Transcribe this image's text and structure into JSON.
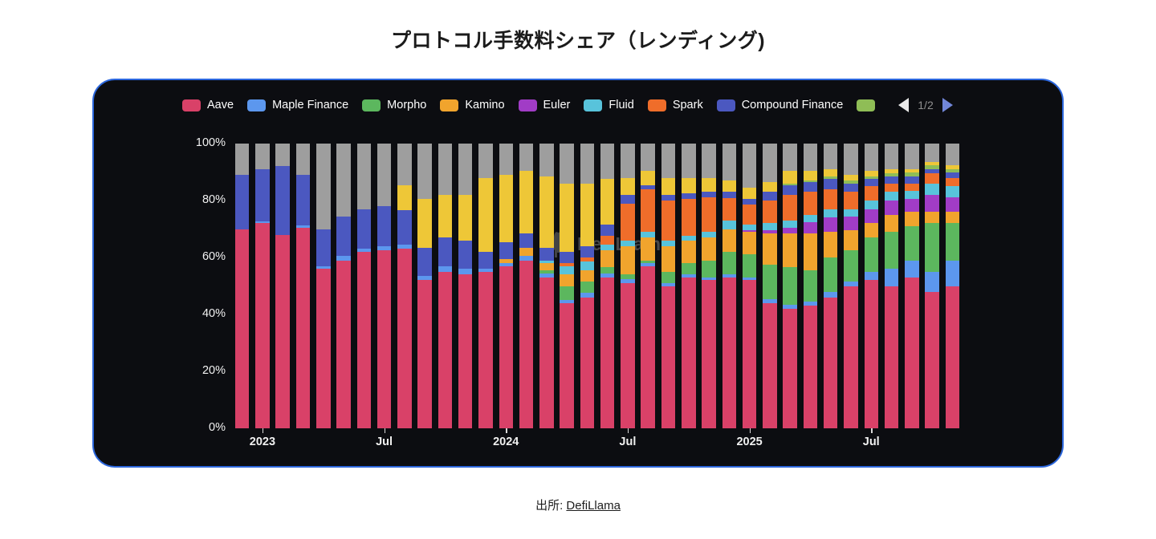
{
  "title": "プロトコル手数料シェア（レンディング)",
  "legend": {
    "items": [
      {
        "label": "Aave",
        "color": "#d94168"
      },
      {
        "label": "Maple Finance",
        "color": "#5c97ee"
      },
      {
        "label": "Morpho",
        "color": "#5cb75e"
      },
      {
        "label": "Kamino",
        "color": "#f1a42d"
      },
      {
        "label": "Euler",
        "color": "#a13cc6"
      },
      {
        "label": "Fluid",
        "color": "#58c3db"
      },
      {
        "label": "Spark",
        "color": "#ef6d2a"
      },
      {
        "label": "Compound Finance",
        "color": "#4b58c0"
      },
      {
        "label": "",
        "color": "#8fbd56"
      }
    ],
    "pagination": {
      "current": "1/2"
    }
  },
  "watermark": "DefiLlama",
  "footer": {
    "prefix": "出所:",
    "link_label": "DefiLlama"
  },
  "chart_data": {
    "type": "bar",
    "stacked": true,
    "unit": "percent share of lending protocol fees",
    "ylim": [
      0,
      100
    ],
    "grid": false,
    "legend_position": "top",
    "y_ticks": [
      "0%",
      "20%",
      "40%",
      "60%",
      "80%",
      "100%"
    ],
    "x_ticks": [
      {
        "label": "2023",
        "index": 1
      },
      {
        "label": "Jul",
        "index": 7
      },
      {
        "label": "2024",
        "index": 13
      },
      {
        "label": "Jul",
        "index": 19
      },
      {
        "label": "2025",
        "index": 25
      },
      {
        "label": "Jul",
        "index": 31
      }
    ],
    "months": [
      "2022-12",
      "2023-01",
      "2023-02",
      "2023-03",
      "2023-04",
      "2023-05",
      "2023-06",
      "2023-07",
      "2023-08",
      "2023-09",
      "2023-10",
      "2023-11",
      "2023-12",
      "2024-01",
      "2024-02",
      "2024-03",
      "2024-04",
      "2024-05",
      "2024-06",
      "2024-07",
      "2024-08",
      "2024-09",
      "2024-10",
      "2024-11",
      "2024-12",
      "2025-01",
      "2025-02",
      "2025-03",
      "2025-04",
      "2025-05",
      "2025-06",
      "2025-07",
      "2025-08",
      "2025-09",
      "2025-10",
      "2025-11"
    ],
    "series": [
      {
        "name": "Aave",
        "color": "#d94168",
        "values": [
          70,
          72,
          68,
          70.5,
          56,
          59,
          62,
          62.5,
          63,
          52,
          55,
          54,
          55,
          57,
          59,
          53,
          44,
          46,
          53,
          51,
          57,
          50,
          53,
          52,
          53,
          52,
          44,
          42,
          43,
          46,
          50,
          52,
          50,
          53,
          48,
          50
        ]
      },
      {
        "name": "Maple Finance",
        "color": "#5c97ee",
        "values": [
          0,
          0.7,
          0,
          0.7,
          1,
          1.5,
          1,
          1.5,
          1.5,
          1.5,
          2,
          2,
          1,
          1,
          1.5,
          1.5,
          1,
          1.5,
          1.5,
          1.5,
          1,
          1,
          1,
          1,
          1,
          1,
          1.5,
          1.5,
          1.5,
          2,
          1.5,
          3,
          6,
          6,
          7,
          9
        ]
      },
      {
        "name": "Morpho",
        "color": "#5cb75e",
        "values": [
          0,
          0,
          0,
          0,
          0,
          0,
          0,
          0,
          0,
          0,
          0,
          0,
          0,
          0,
          0,
          1,
          5,
          4,
          2,
          1.5,
          1,
          4,
          4,
          6,
          8,
          8,
          12,
          13,
          11,
          12,
          11,
          12,
          13,
          12,
          17,
          13
        ]
      },
      {
        "name": "Kamino",
        "color": "#f1a42d",
        "values": [
          0,
          0,
          0,
          0,
          0,
          0,
          0,
          0,
          0,
          0,
          0,
          0,
          0,
          1.5,
          3,
          2.5,
          4,
          4,
          6,
          10,
          8,
          9,
          8,
          8,
          8,
          8,
          11,
          12,
          13,
          9,
          7,
          5,
          6,
          5,
          4,
          4
        ]
      },
      {
        "name": "Euler",
        "color": "#a13cc6",
        "values": [
          0,
          0,
          0,
          0,
          0,
          0,
          0,
          0,
          0,
          0,
          0,
          0,
          0,
          0,
          0,
          0,
          0,
          0,
          0,
          0,
          0,
          0,
          0,
          0,
          0,
          0.5,
          1,
          2,
          4,
          5,
          5,
          5,
          5,
          4.5,
          6,
          5
        ]
      },
      {
        "name": "Fluid",
        "color": "#58c3db",
        "values": [
          0,
          0,
          0,
          0,
          0,
          0,
          0,
          0,
          0,
          0,
          0,
          0,
          0,
          0,
          0,
          1,
          3,
          3,
          2,
          2,
          2,
          2,
          1.5,
          2,
          3,
          2,
          2.5,
          2.5,
          2.5,
          3,
          2.5,
          3,
          3,
          3,
          4,
          4
        ]
      },
      {
        "name": "Spark",
        "color": "#ef6d2a",
        "values": [
          0,
          0,
          0,
          0,
          0,
          0,
          0,
          0,
          0,
          0,
          0,
          0,
          0,
          0,
          0,
          0,
          1,
          1.5,
          3,
          13,
          15,
          14,
          13,
          12,
          8,
          7,
          8,
          9,
          8,
          7,
          6,
          5,
          3,
          2.5,
          3.5,
          3
        ]
      },
      {
        "name": "Compound Finance",
        "color": "#4b58c0",
        "values": [
          19,
          18.3,
          24,
          17.8,
          13,
          14,
          14,
          14,
          12,
          10,
          10,
          10,
          6,
          6,
          5,
          4.5,
          4,
          4,
          4,
          3,
          1.5,
          2,
          2,
          2,
          2,
          2,
          3,
          3.5,
          3.5,
          3.5,
          3,
          2.5,
          2.5,
          2.5,
          1.5,
          2
        ]
      },
      {
        "name": "Unlabeled (lime)",
        "color": "#8fbd56",
        "values": [
          0,
          0,
          0,
          0,
          0,
          0,
          0,
          0,
          0,
          0,
          0,
          0,
          0,
          0,
          0,
          0,
          0,
          0,
          0,
          0,
          0,
          0,
          0,
          0,
          0,
          0,
          0,
          0.5,
          0.5,
          1,
          1,
          1,
          1,
          1.5,
          1.5,
          1
        ]
      },
      {
        "name": "Unlabeled (yellow)",
        "color": "#eec737",
        "values": [
          0,
          0,
          0,
          0,
          0,
          0,
          0,
          0,
          9,
          17,
          15,
          16,
          26,
          23.5,
          22,
          25,
          24,
          22,
          16,
          6,
          5,
          6,
          5.5,
          5,
          4,
          4,
          3.5,
          4.5,
          3.5,
          2.5,
          2,
          2,
          1.5,
          1,
          1,
          1.5
        ]
      },
      {
        "name": "Unlabeled (gray)",
        "color": "#9e9e9e",
        "values": "remainder"
      }
    ]
  }
}
